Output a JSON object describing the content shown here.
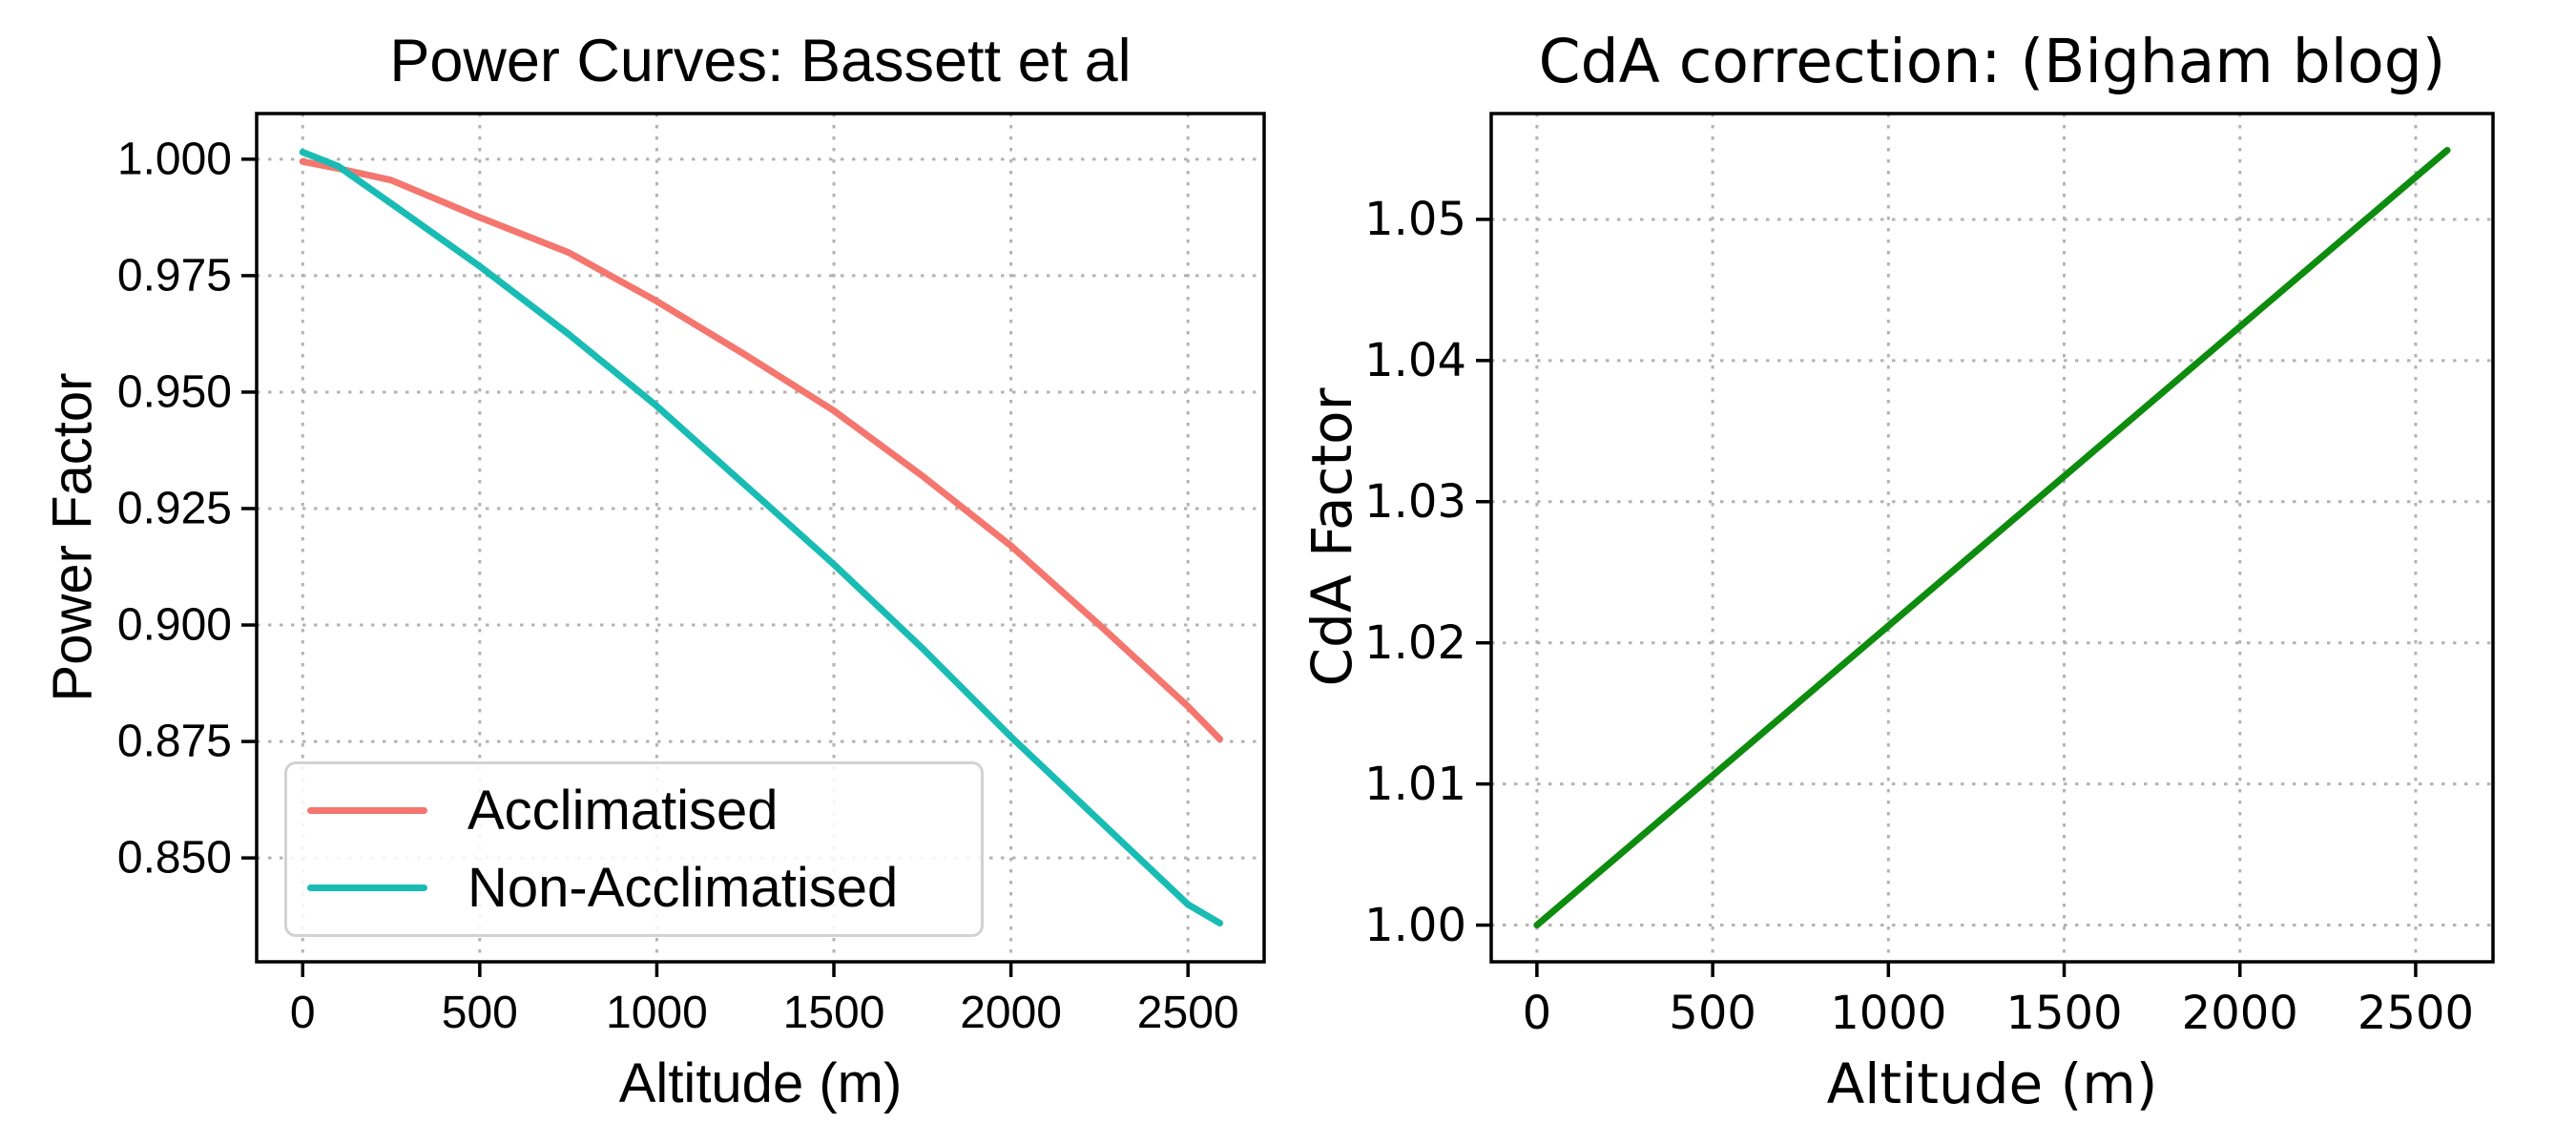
{
  "figure": {
    "background": "#ffffff",
    "text_color": "#000000",
    "grid_color": "#b3b3b3",
    "spine_color": "#000000",
    "legend_border_color": "#d2d2d2"
  },
  "chart_data": [
    {
      "type": "line",
      "title": "Power Curves: Bassett et al",
      "xlabel": "Altitude (m)",
      "ylabel": "Power Factor",
      "xlim": [
        -130,
        2715
      ],
      "ylim": [
        0.8277,
        1.0098
      ],
      "xticks": [
        0,
        500,
        1000,
        1500,
        2000,
        2500
      ],
      "yticks": [
        "1.000",
        "0.975",
        "0.950",
        "0.925",
        "0.900",
        "0.875",
        "0.850"
      ],
      "grid": true,
      "legend_position": "lower left",
      "x": [
        0,
        100,
        250,
        500,
        750,
        1000,
        1250,
        1500,
        1750,
        2000,
        2250,
        2500,
        2590
      ],
      "series": [
        {
          "name": "Acclimatised",
          "color": "#f4766e",
          "values": [
            0.9995,
            0.998,
            0.9955,
            0.9875,
            0.98,
            0.9695,
            0.958,
            0.946,
            0.932,
            0.917,
            0.9,
            0.8825,
            0.8755
          ]
        },
        {
          "name": "Non-Acclimatised",
          "color": "#19bcb4",
          "values": [
            1.0015,
            0.9985,
            0.9905,
            0.977,
            0.9625,
            0.947,
            0.93,
            0.913,
            0.895,
            0.876,
            0.858,
            0.84,
            0.836
          ]
        }
      ]
    },
    {
      "type": "line",
      "title": "CdA correction: (Bigham blog)",
      "xlabel": "Altitude (m)",
      "ylabel": "CdA Factor",
      "xlim": [
        -130,
        2720
      ],
      "ylim": [
        0.9974,
        1.0575
      ],
      "xticks": [
        0,
        500,
        1000,
        1500,
        2000,
        2500
      ],
      "yticks": [
        "1.05",
        "1.04",
        "1.03",
        "1.02",
        "1.01",
        "1.00"
      ],
      "grid": true,
      "x": [
        0,
        500,
        1000,
        1500,
        2000,
        2500,
        2590
      ],
      "series": [
        {
          "name": "CdA correction",
          "color": "#0d8c0d",
          "values": [
            1.0,
            1.0106,
            1.0212,
            1.0318,
            1.0424,
            1.053,
            1.0549
          ]
        }
      ]
    }
  ]
}
